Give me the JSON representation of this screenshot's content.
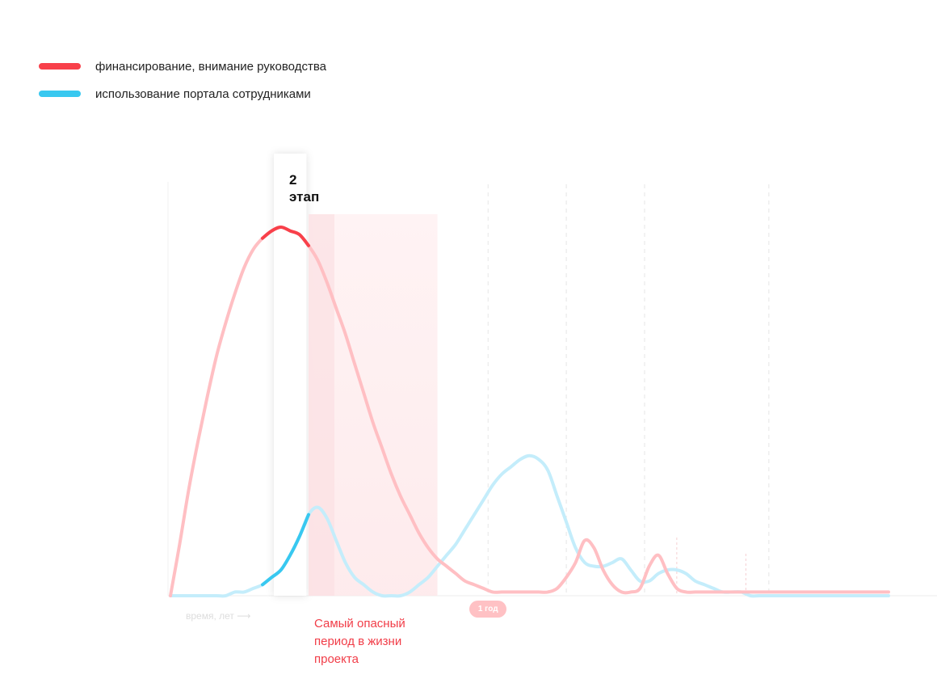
{
  "legend": [
    {
      "label": "финансирование, внимание руководства",
      "color": "#f8404a"
    },
    {
      "label": "использование портала сотрудниками",
      "color": "#38c8f0"
    }
  ],
  "stage_label": "2\nэтап",
  "year_marker": "1 год",
  "xaxis_label": "время, лет ⟶",
  "annotation": "Самый опасный период в жизни проекта",
  "colors": {
    "funding": "#f8404a",
    "funding_light": "#ffbfc3",
    "usage": "#38c8f0",
    "usage_light": "#c4edfb",
    "danger_zone": "#fde6e8"
  },
  "chart_data": {
    "type": "line",
    "title": "",
    "xlabel": "время, лет",
    "ylabel": "",
    "xlim": [
      0,
      1.56
    ],
    "ylim": [
      0,
      100
    ],
    "grid": false,
    "legend_position": "top-left",
    "annotations": [
      {
        "text": "2 этап",
        "x_range": [
          0.23,
          0.29
        ]
      },
      {
        "text": "Самый опасный период в жизни проекта",
        "x_range": [
          0.3,
          0.58
        ]
      },
      {
        "text": "1 год",
        "x": 0.69
      }
    ],
    "series": [
      {
        "name": "финансирование, внимание руководства",
        "x": [
          0,
          0.02,
          0.04,
          0.06,
          0.08,
          0.1,
          0.12,
          0.14,
          0.16,
          0.18,
          0.2,
          0.22,
          0.24,
          0.26,
          0.28,
          0.3,
          0.32,
          0.34,
          0.36,
          0.38,
          0.4,
          0.42,
          0.44,
          0.46,
          0.48,
          0.5,
          0.52,
          0.54,
          0.56,
          0.58,
          0.6,
          0.62,
          0.64,
          0.66,
          0.68,
          0.7,
          0.72,
          0.74,
          0.76,
          0.78,
          0.8,
          0.82,
          0.84,
          0.86,
          0.88,
          0.9,
          0.92,
          0.94,
          0.96,
          0.98,
          1.0,
          1.02,
          1.04,
          1.06,
          1.08,
          1.1,
          1.12,
          1.14,
          1.16,
          1.18,
          1.2,
          1.22,
          1.24,
          1.26,
          1.28,
          1.3,
          1.32,
          1.34,
          1.36,
          1.38,
          1.4,
          1.42,
          1.44,
          1.46,
          1.48,
          1.5,
          1.52,
          1.54,
          1.56
        ],
        "values": [
          0,
          14,
          29,
          42,
          54,
          65,
          74,
          82,
          89,
          94,
          97,
          99,
          100,
          99,
          98,
          95,
          91,
          85,
          78,
          71,
          63,
          55,
          47,
          40,
          33,
          27,
          22,
          17,
          13,
          10,
          8,
          6,
          4,
          3,
          2,
          1,
          1,
          1,
          1,
          1,
          1,
          1,
          2,
          5,
          9,
          15,
          13,
          7,
          3,
          1,
          1,
          2,
          8,
          11,
          6,
          2,
          1,
          1,
          1,
          1,
          1,
          1,
          1,
          1,
          1,
          1,
          1,
          1,
          1,
          1,
          1,
          1,
          1,
          1,
          1,
          1,
          1,
          1,
          1
        ]
      },
      {
        "name": "использование портала сотрудниками",
        "x": [
          0,
          0.02,
          0.04,
          0.06,
          0.08,
          0.1,
          0.12,
          0.14,
          0.16,
          0.18,
          0.2,
          0.22,
          0.24,
          0.26,
          0.28,
          0.3,
          0.32,
          0.34,
          0.36,
          0.38,
          0.4,
          0.42,
          0.44,
          0.46,
          0.48,
          0.5,
          0.52,
          0.54,
          0.56,
          0.58,
          0.6,
          0.62,
          0.64,
          0.66,
          0.68,
          0.7,
          0.72,
          0.74,
          0.76,
          0.78,
          0.8,
          0.82,
          0.84,
          0.86,
          0.88,
          0.9,
          0.92,
          0.94,
          0.96,
          0.98,
          1.0,
          1.02,
          1.04,
          1.06,
          1.08,
          1.1,
          1.12,
          1.14,
          1.16,
          1.18,
          1.2,
          1.22,
          1.24,
          1.26,
          1.28,
          1.3,
          1.32,
          1.34,
          1.36,
          1.38,
          1.4,
          1.42,
          1.44,
          1.46,
          1.48,
          1.5,
          1.52,
          1.54,
          1.56
        ],
        "values": [
          0,
          0,
          0,
          0,
          0,
          0,
          0,
          1,
          1,
          2,
          3,
          5,
          7,
          11,
          16,
          22,
          24,
          21,
          15,
          9,
          5,
          3,
          1,
          0,
          0,
          0,
          1,
          3,
          5,
          8,
          11,
          14,
          18,
          22,
          26,
          30,
          33,
          35,
          37,
          38,
          37,
          34,
          27,
          20,
          13,
          9,
          8,
          8,
          9,
          10,
          7,
          4,
          4,
          6,
          7,
          7,
          6,
          4,
          3,
          2,
          1,
          1,
          1,
          0,
          0,
          0,
          0,
          0,
          0,
          0,
          0,
          0,
          0,
          0,
          0,
          0,
          0,
          0,
          0
        ]
      }
    ]
  }
}
